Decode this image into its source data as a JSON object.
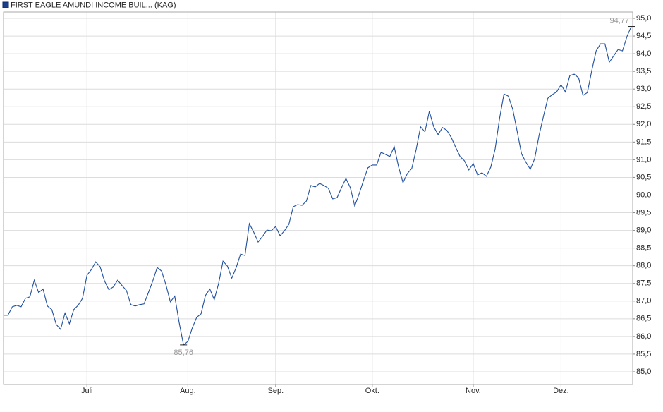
{
  "chart_data": {
    "type": "line",
    "series": [
      {
        "name": "FIRST EAGLE AMUNDI INCOME BUIL... (KAG)",
        "color": "#1f4f9e",
        "values": [
          86.6,
          86.6,
          86.84,
          86.88,
          86.84,
          87.08,
          87.12,
          87.59,
          87.24,
          87.34,
          86.86,
          86.76,
          86.34,
          86.2,
          86.66,
          86.36,
          86.76,
          86.88,
          87.08,
          87.73,
          87.89,
          88.11,
          87.97,
          87.57,
          87.32,
          87.4,
          87.59,
          87.44,
          87.3,
          86.9,
          86.86,
          86.9,
          86.92,
          87.24,
          87.57,
          87.95,
          87.85,
          87.46,
          86.98,
          87.14,
          86.4,
          85.76,
          85.86,
          86.24,
          86.54,
          86.64,
          87.16,
          87.34,
          87.04,
          87.5,
          88.13,
          87.99,
          87.65,
          87.95,
          88.33,
          88.29,
          89.19,
          88.95,
          88.67,
          88.83,
          89.01,
          88.99,
          89.11,
          88.85,
          88.99,
          89.17,
          89.67,
          89.73,
          89.71,
          89.83,
          90.27,
          90.23,
          90.33,
          90.27,
          90.19,
          89.89,
          89.93,
          90.21,
          90.47,
          90.21,
          89.69,
          90.03,
          90.41,
          90.77,
          90.85,
          90.85,
          91.21,
          91.15,
          91.09,
          91.37,
          90.79,
          90.35,
          90.61,
          90.75,
          91.29,
          91.93,
          91.79,
          92.37,
          91.93,
          91.71,
          91.91,
          91.83,
          91.63,
          91.35,
          91.09,
          90.97,
          90.71,
          90.89,
          90.57,
          90.63,
          90.53,
          90.79,
          91.31,
          92.17,
          92.86,
          92.8,
          92.43,
          91.81,
          91.17,
          90.93,
          90.73,
          91.03,
          91.69,
          92.23,
          92.74,
          92.84,
          92.92,
          93.12,
          92.92,
          93.38,
          93.42,
          93.32,
          92.82,
          92.9,
          93.52,
          94.08,
          94.28,
          94.28,
          93.76,
          93.94,
          94.12,
          94.08,
          94.48,
          94.77
        ]
      }
    ],
    "categories": [
      null,
      null,
      null,
      null,
      null,
      null,
      null,
      null,
      null,
      null,
      null,
      null,
      null,
      null,
      null,
      null,
      null,
      null,
      null,
      "Juli",
      null,
      null,
      null,
      null,
      null,
      null,
      null,
      null,
      null,
      null,
      null,
      null,
      null,
      null,
      null,
      null,
      null,
      null,
      null,
      null,
      null,
      null,
      "Aug.",
      null,
      null,
      null,
      null,
      null,
      null,
      null,
      null,
      null,
      null,
      null,
      null,
      null,
      null,
      null,
      null,
      null,
      null,
      null,
      "Sep.",
      null,
      null,
      null,
      null,
      null,
      null,
      null,
      null,
      null,
      null,
      null,
      null,
      null,
      null,
      null,
      null,
      null,
      null,
      null,
      null,
      null,
      "Okt.",
      null,
      null,
      null,
      null,
      null,
      null,
      null,
      null,
      null,
      null,
      null,
      null,
      null,
      null,
      null,
      null,
      null,
      null,
      null,
      null,
      null,
      null,
      "Nov.",
      null,
      null,
      null,
      null,
      null,
      null,
      null,
      null,
      null,
      null,
      null,
      null,
      null,
      null,
      null,
      null,
      null,
      null,
      null,
      "Dez.",
      null,
      null,
      null,
      null,
      null,
      null,
      null,
      null,
      null,
      null,
      null,
      null,
      null,
      null,
      null,
      null
    ],
    "max_label": "94,77",
    "min_label": "85,76",
    "ylim": [
      84.64,
      95.18
    ],
    "yticks": [
      {
        "value": 85.0,
        "label": "85,0"
      },
      {
        "value": 85.5,
        "label": "85,5"
      },
      {
        "value": 86.0,
        "label": "86,0"
      },
      {
        "value": 86.5,
        "label": "86,5"
      },
      {
        "value": 87.0,
        "label": "87,0"
      },
      {
        "value": 87.5,
        "label": "87,5"
      },
      {
        "value": 88.0,
        "label": "88,0"
      },
      {
        "value": 88.5,
        "label": "88,5"
      },
      {
        "value": 89.0,
        "label": "89,0"
      },
      {
        "value": 89.5,
        "label": "89,5"
      },
      {
        "value": 90.0,
        "label": "90,0"
      },
      {
        "value": 90.5,
        "label": "90,5"
      },
      {
        "value": 91.0,
        "label": "91,0"
      },
      {
        "value": 91.5,
        "label": "91,5"
      },
      {
        "value": 92.0,
        "label": "92,0"
      },
      {
        "value": 92.5,
        "label": "92,5"
      },
      {
        "value": 93.0,
        "label": "93,0"
      },
      {
        "value": 93.5,
        "label": "93,5"
      },
      {
        "value": 94.0,
        "label": "94,0"
      },
      {
        "value": 94.5,
        "label": "94,5"
      },
      {
        "value": 95.0,
        "label": "95,0"
      }
    ],
    "grid": true
  }
}
